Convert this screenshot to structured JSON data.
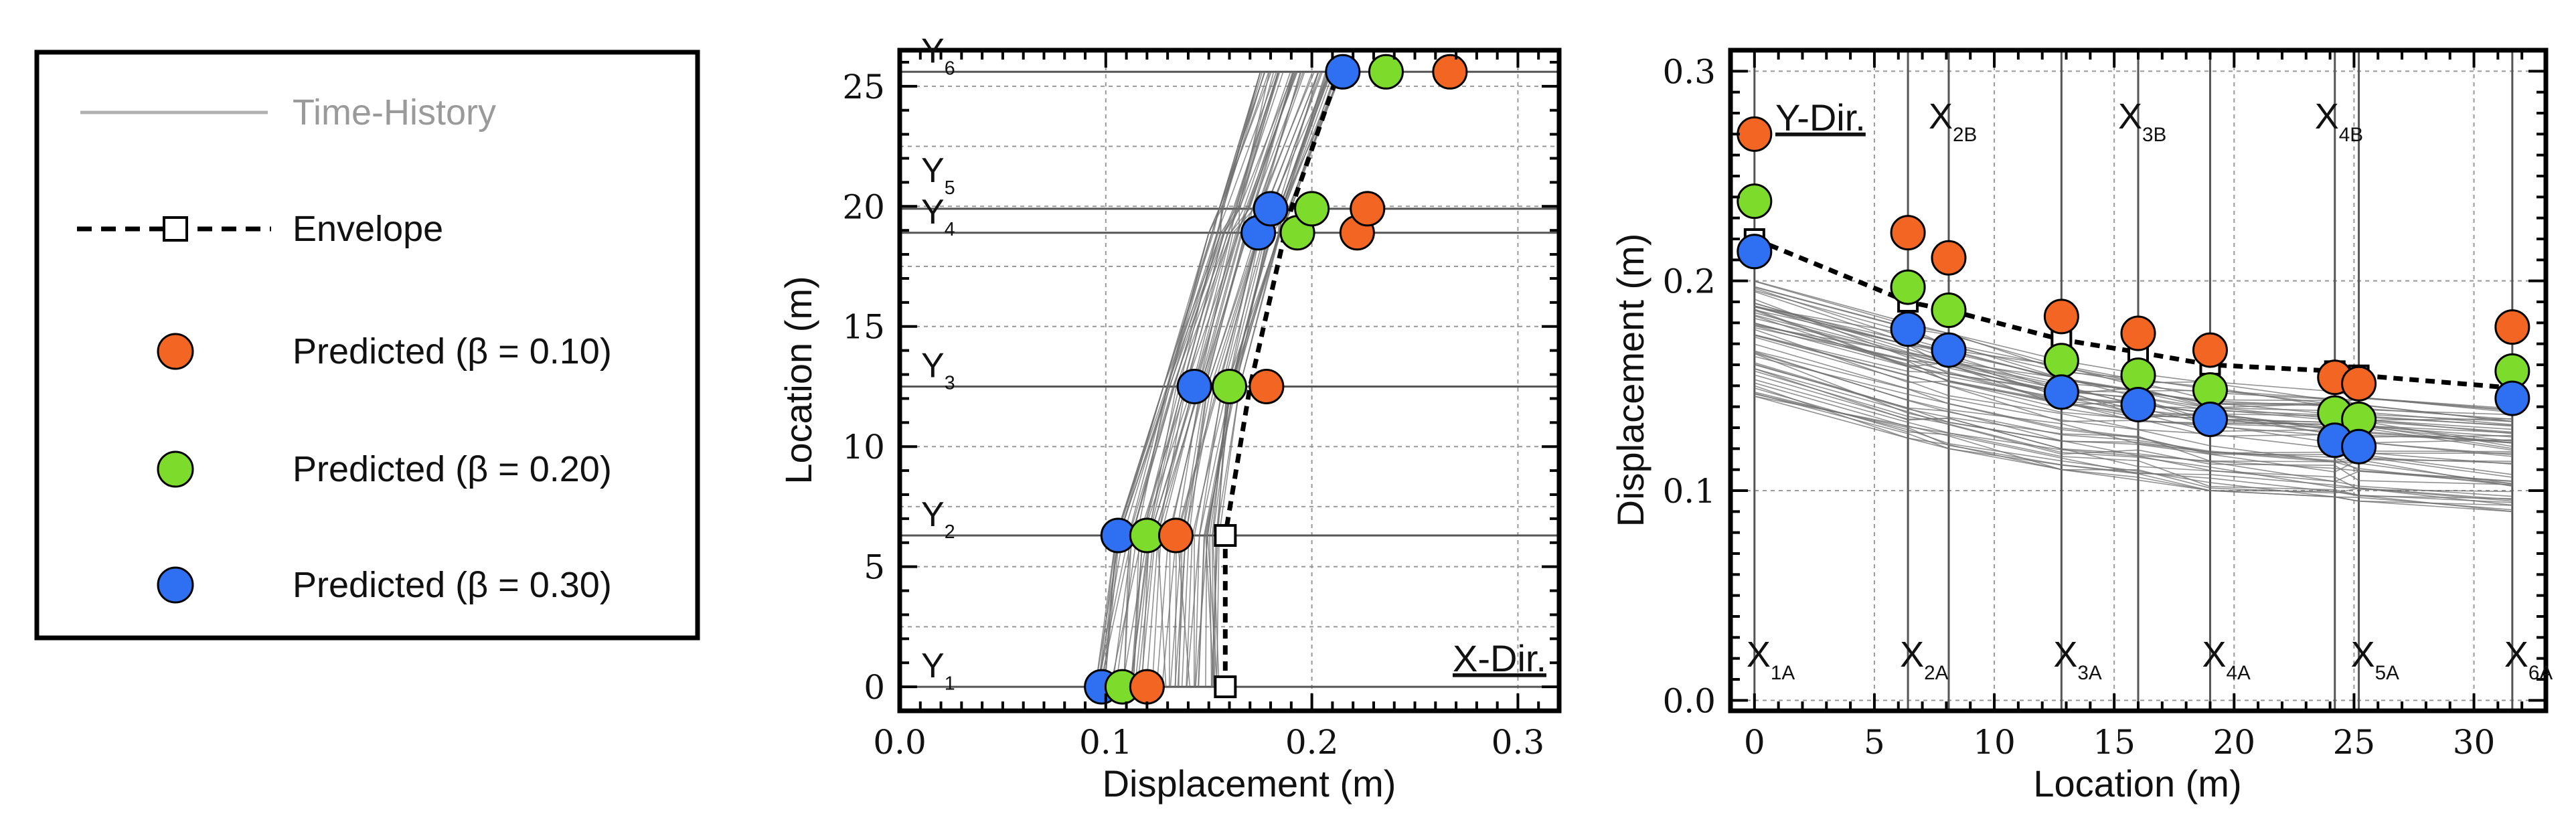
{
  "legend": {
    "items": [
      {
        "label": "Time-History",
        "kind": "line",
        "color": "#b0b0b0"
      },
      {
        "label": "Envelope",
        "kind": "dashed-square"
      },
      {
        "label": "Predicted (β = 0.10)",
        "kind": "marker",
        "color": "#f26522"
      },
      {
        "label": "Predicted (β = 0.20)",
        "kind": "marker",
        "color": "#7ddb2c"
      },
      {
        "label": "Predicted (β = 0.30)",
        "kind": "marker",
        "color": "#2f6ff2"
      }
    ]
  },
  "chart_data": [
    {
      "type": "line",
      "name": "x-direction",
      "title": "",
      "annotation": "X-Dir.",
      "xlabel": "Displacement (m)",
      "ylabel": "Location (m)",
      "xlim": [
        0.0,
        0.32
      ],
      "ylim": [
        -1,
        26.5
      ],
      "xticks": [
        0.0,
        0.1,
        0.2,
        0.3
      ],
      "xtick_labels": [
        "0.0",
        "0.1",
        "0.2",
        "0.3"
      ],
      "yticks": [
        0,
        5,
        10,
        15,
        20,
        25
      ],
      "ytick_labels": [
        "0",
        "5",
        "10",
        "15",
        "20",
        "25"
      ],
      "grid": true,
      "floor_levels": [
        {
          "label": "Y",
          "sub": "1",
          "y": 0
        },
        {
          "label": "Y",
          "sub": "2",
          "y": 6.3
        },
        {
          "label": "Y",
          "sub": "3",
          "y": 12.5
        },
        {
          "label": "Y",
          "sub": "4",
          "y": 18.9
        },
        {
          "label": "Y",
          "sub": "5",
          "y": 19.9
        },
        {
          "label": "Y",
          "sub": "6",
          "y": 25.6
        }
      ],
      "envelope": {
        "y": [
          0,
          6.3,
          12.5,
          18.9,
          19.9,
          25.6
        ],
        "x": [
          0.158,
          0.158,
          0.17,
          0.187,
          0.19,
          0.213
        ]
      },
      "series": [
        {
          "name": "Predicted (β = 0.10)",
          "color": "#f26522",
          "points": [
            [
              0.12,
              0
            ],
            [
              0.134,
              6.3
            ],
            [
              0.178,
              12.5
            ],
            [
              0.222,
              18.9
            ],
            [
              0.227,
              19.9
            ],
            [
              0.267,
              25.6
            ]
          ]
        },
        {
          "name": "Predicted (β = 0.20)",
          "color": "#7ddb2c",
          "points": [
            [
              0.108,
              0
            ],
            [
              0.12,
              6.3
            ],
            [
              0.16,
              12.5
            ],
            [
              0.193,
              18.9
            ],
            [
              0.2,
              19.9
            ],
            [
              0.236,
              25.6
            ]
          ]
        },
        {
          "name": "Predicted (β = 0.30)",
          "color": "#2f6ff2",
          "points": [
            [
              0.098,
              0
            ],
            [
              0.106,
              6.3
            ],
            [
              0.143,
              12.5
            ],
            [
              0.174,
              18.9
            ],
            [
              0.18,
              19.9
            ],
            [
              0.215,
              25.6
            ]
          ]
        }
      ],
      "time_history_range": {
        "y": [
          0,
          6.3,
          12.5,
          18.9,
          19.9,
          25.6
        ],
        "min": [
          0.095,
          0.105,
          0.128,
          0.15,
          0.155,
          0.175
        ],
        "max": [
          0.155,
          0.155,
          0.165,
          0.185,
          0.19,
          0.215
        ]
      }
    },
    {
      "type": "line",
      "name": "y-direction",
      "title": "",
      "annotation": "Y-Dir.",
      "xlabel": "Location (m)",
      "ylabel": "Displacement (m)",
      "xlim": [
        -1,
        33
      ],
      "ylim": [
        -0.005,
        0.31
      ],
      "xticks": [
        0,
        5,
        10,
        15,
        20,
        25,
        30
      ],
      "xtick_labels": [
        "0",
        "5",
        "10",
        "15",
        "20",
        "25",
        "30"
      ],
      "yticks": [
        0.0,
        0.1,
        0.2,
        0.3
      ],
      "ytick_labels": [
        "0.0",
        "0.1",
        "0.2",
        "0.3"
      ],
      "grid": true,
      "axis_lines_A": [
        {
          "label": "X",
          "sub": "1A",
          "x": 0
        },
        {
          "label": "X",
          "sub": "2A",
          "x": 6.4
        },
        {
          "label": "X",
          "sub": "3A",
          "x": 12.8
        },
        {
          "label": "X",
          "sub": "4A",
          "x": 19
        },
        {
          "label": "X",
          "sub": "5A",
          "x": 25.2
        },
        {
          "label": "X",
          "sub": "6A",
          "x": 31.6
        }
      ],
      "axis_lines_B": [
        {
          "label": "X",
          "sub": "2B",
          "x": 8.1
        },
        {
          "label": "X",
          "sub": "3B",
          "x": 16
        },
        {
          "label": "X",
          "sub": "4B",
          "x": 24.2
        }
      ],
      "envelope": {
        "x": [
          0,
          6.4,
          8.1,
          12.8,
          16,
          19,
          24.2,
          25.2,
          31.6
        ],
        "y": [
          0.22,
          0.19,
          0.186,
          0.172,
          0.166,
          0.16,
          0.157,
          0.155,
          0.149
        ]
      },
      "series": [
        {
          "name": "Predicted (β = 0.10)",
          "color": "#f26522",
          "points": [
            [
              0,
              0.27
            ],
            [
              6.4,
              0.223
            ],
            [
              8.1,
              0.211
            ],
            [
              12.8,
              0.183
            ],
            [
              16,
              0.175
            ],
            [
              19,
              0.167
            ],
            [
              24.2,
              0.154
            ],
            [
              25.2,
              0.151
            ],
            [
              31.6,
              0.178
            ]
          ]
        },
        {
          "name": "Predicted (β = 0.20)",
          "color": "#7ddb2c",
          "points": [
            [
              0,
              0.238
            ],
            [
              6.4,
              0.197
            ],
            [
              8.1,
              0.186
            ],
            [
              12.8,
              0.162
            ],
            [
              16,
              0.155
            ],
            [
              19,
              0.148
            ],
            [
              24.2,
              0.137
            ],
            [
              25.2,
              0.134
            ],
            [
              31.6,
              0.157
            ]
          ]
        },
        {
          "name": "Predicted (β = 0.30)",
          "color": "#2f6ff2",
          "points": [
            [
              0,
              0.214
            ],
            [
              6.4,
              0.177
            ],
            [
              8.1,
              0.167
            ],
            [
              12.8,
              0.147
            ],
            [
              16,
              0.141
            ],
            [
              19,
              0.134
            ],
            [
              24.2,
              0.124
            ],
            [
              25.2,
              0.121
            ],
            [
              31.6,
              0.144
            ]
          ]
        }
      ],
      "time_history_range": {
        "x": [
          0,
          6.4,
          8.1,
          12.8,
          16,
          19,
          24.2,
          25.2,
          31.6
        ],
        "min": [
          0.145,
          0.125,
          0.12,
          0.11,
          0.105,
          0.1,
          0.097,
          0.095,
          0.09
        ],
        "max": [
          0.2,
          0.18,
          0.175,
          0.162,
          0.157,
          0.152,
          0.148,
          0.147,
          0.14
        ]
      }
    }
  ]
}
